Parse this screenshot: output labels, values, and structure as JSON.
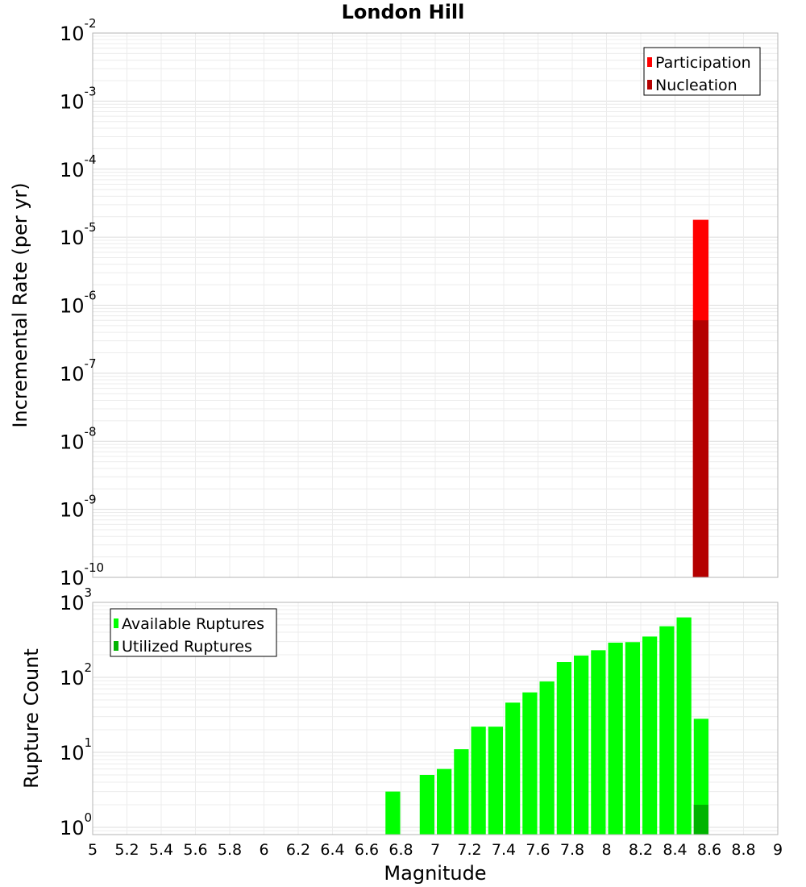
{
  "chart_data": [
    {
      "type": "bar",
      "title": "London Hill",
      "xlabel": "",
      "ylabel": "Incremental Rate (per yr)",
      "yscale": "log",
      "ylim": [
        1e-10,
        0.01
      ],
      "xlim": [
        5,
        9
      ],
      "ytick_exponents": [
        "-10",
        "-9",
        "-8",
        "-7",
        "-6",
        "-5",
        "-4",
        "-3",
        "-2"
      ],
      "ytick_base": "10",
      "grid": true,
      "legend_position": "top-right",
      "series": [
        {
          "name": "Participation",
          "color": "#ff0000",
          "x": [
            8.55
          ],
          "values": [
            1.8e-05
          ]
        },
        {
          "name": "Nucleation",
          "color": "#b40000",
          "x": [
            8.55
          ],
          "values": [
            6e-07
          ]
        }
      ]
    },
    {
      "type": "bar",
      "title": "",
      "xlabel": "Magnitude",
      "ylabel": "Rupture Count",
      "yscale": "log",
      "ylim": [
        0.8,
        1000
      ],
      "xlim": [
        5,
        9
      ],
      "ytick_exponents": [
        "0",
        "1",
        "2",
        "3"
      ],
      "ytick_base": "10",
      "xticks": [
        "5",
        "5.2",
        "5.4",
        "5.6",
        "5.8",
        "6",
        "6.2",
        "6.4",
        "6.6",
        "6.8",
        "7",
        "7.2",
        "7.4",
        "7.6",
        "7.8",
        "8",
        "8.2",
        "8.4",
        "8.6",
        "8.8",
        "9"
      ],
      "grid": true,
      "legend_position": "top-left",
      "series": [
        {
          "name": "Available Ruptures",
          "color": "#00ff00",
          "x": [
            6.75,
            6.95,
            7.05,
            7.15,
            7.25,
            7.35,
            7.45,
            7.55,
            7.65,
            7.75,
            7.85,
            7.95,
            8.05,
            8.15,
            8.25,
            8.35,
            8.45,
            8.55
          ],
          "values": [
            3,
            5,
            6,
            11,
            22,
            22,
            46,
            63,
            88,
            160,
            195,
            230,
            290,
            295,
            350,
            480,
            630,
            28
          ]
        },
        {
          "name": "Utilized Ruptures",
          "color": "#00b400",
          "x": [
            8.55
          ],
          "values": [
            2
          ]
        }
      ]
    }
  ]
}
